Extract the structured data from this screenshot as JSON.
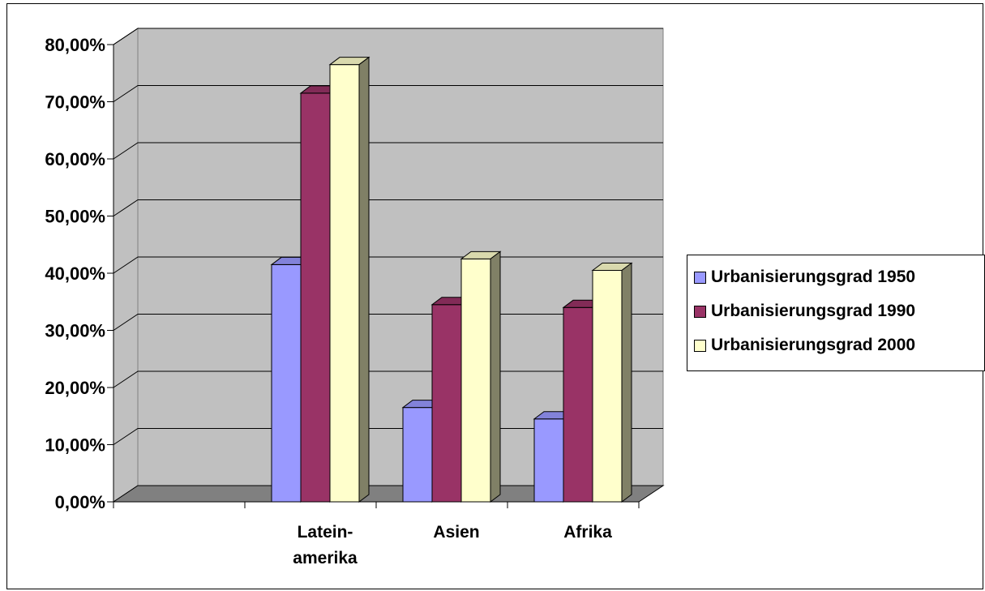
{
  "chart_data": {
    "type": "bar",
    "title": "",
    "xlabel": "",
    "ylabel": "",
    "categories": [
      "",
      "Lateinamerika",
      "Asien",
      "Afrika"
    ],
    "category_labels": [
      [
        ""
      ],
      [
        "Latein-",
        "amerika"
      ],
      [
        "Asien"
      ],
      [
        "Afrika"
      ]
    ],
    "ylim": [
      0,
      80
    ],
    "yticks": [
      0,
      10,
      20,
      30,
      40,
      50,
      60,
      70,
      80
    ],
    "ytick_labels": [
      "0,00%",
      "10,00%",
      "20,00%",
      "30,00%",
      "40,00%",
      "50,00%",
      "60,00%",
      "70,00%",
      "80,00%"
    ],
    "grid": true,
    "legend_position": "right",
    "series": [
      {
        "name": "Urbanisierungsgrad 1950",
        "color": "#9999ff",
        "values": [
          null,
          41.5,
          16.5,
          14.5
        ]
      },
      {
        "name": "Urbanisierungsgrad 1990",
        "color": "#993366",
        "values": [
          null,
          71.5,
          34.5,
          34.0
        ]
      },
      {
        "name": "Urbanisierungsgrad 2000",
        "color": "#ffffcc",
        "values": [
          null,
          76.5,
          42.5,
          40.5
        ]
      }
    ],
    "colors": {
      "wall": "#c0c0c0",
      "floor": "#808080",
      "gridline": "#000000"
    }
  }
}
